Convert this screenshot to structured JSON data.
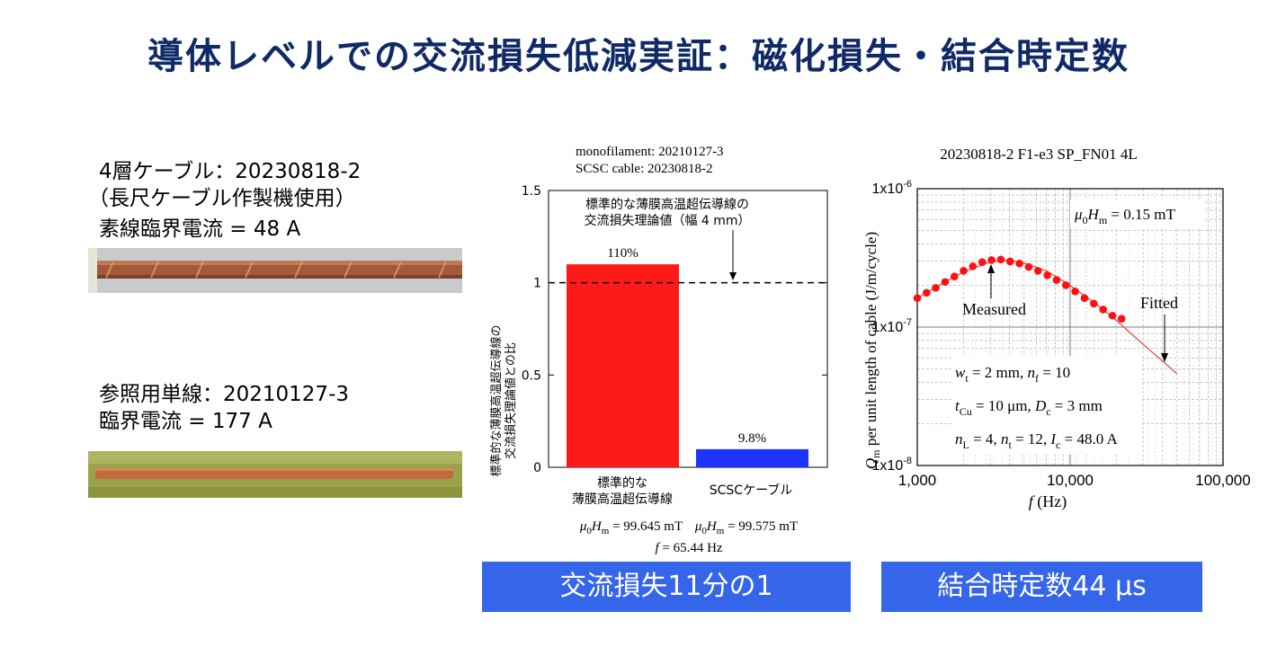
{
  "title": "導体レベルでの交流損失低減実証：磁化損失・結合時定数",
  "cable_info": {
    "line1": "4層ケーブル：20230818-2",
    "line2": "（長尺ケーブル作製機使用）",
    "line3": "素線臨界電流 = 48 A"
  },
  "mono_info": {
    "line1": "参照用単線：20210127-3",
    "line2": "臨界電流 = 177 A"
  },
  "bar_chart": {
    "header1": "monofilament: 20210127-3",
    "header2": "SCSC cable: 20230818-2",
    "ylabel": "標準的な薄膜高温超伝導線の交流損失理論値との比",
    "annotation": [
      "標準的な薄膜高温超伝導線の",
      "交流損失理論値（幅 4 mm）"
    ],
    "yticks": [
      "0",
      "0.5",
      "1",
      "1.5"
    ],
    "cat1": [
      "標準的な",
      "薄膜高温超伝導線"
    ],
    "cat2": "SCSCケーブル",
    "label1": "110%",
    "label2": "9.8%",
    "cond1": "μ0Hm = 99.645 mT",
    "cond2": "μ0Hm = 99.575 mT",
    "freq": "f = 65.44 Hz"
  },
  "loss_plot": {
    "title": "20230818-2 F1-e3 SP_FN01 4L",
    "ylabel": "per unit length of cable (J/m/cycle)",
    "ylabel_sym": "Qm",
    "xlabel": "f (Hz)",
    "xticks": [
      "1,000",
      "10,000",
      "100,000"
    ],
    "yticks": [
      "1x10-8",
      "1x10-7",
      "1x10-6"
    ],
    "field": "μ0Hm = 0.15 mT",
    "measured_label": "Measured",
    "fitted_label": "Fitted",
    "params": [
      "wt = 2 mm, nf = 10",
      "tCu = 10 μm, Dc = 3 mm",
      "nL = 4, nt = 12, Ic = 48.0 A"
    ]
  },
  "banner_left": "交流損失11分の1",
  "banner_right": "結合時定数44 μs",
  "chart_data": [
    {
      "type": "bar",
      "title": "",
      "ylabel": "標準的な薄膜高温超伝導線の交流損失理論値との比",
      "categories": [
        "標準的な薄膜高温超伝導線",
        "SCSCケーブル"
      ],
      "values": [
        1.1,
        0.098
      ],
      "colors": [
        "#ff1a1a",
        "#1f34ff"
      ],
      "ylim": [
        0,
        1.5
      ],
      "reference_line": 1,
      "data_labels": [
        "110%",
        "9.8%"
      ]
    },
    {
      "type": "scatter",
      "title": "20230818-2 F1-e3 SP_FN01 4L",
      "xlabel": "f (Hz)",
      "ylabel": "Qm per unit length of cable (J/m/cycle)",
      "xscale": "log",
      "yscale": "log",
      "xlim": [
        1000,
        100000
      ],
      "ylim": [
        1e-08,
        1e-06
      ],
      "grid": true,
      "series": [
        {
          "name": "Measured",
          "x": [
            1000,
            1150,
            1320,
            1520,
            1750,
            2010,
            2310,
            2660,
            3060,
            3520,
            4050,
            4660,
            5360,
            6160,
            7090,
            8150,
            9380,
            10790,
            12410,
            14280,
            16430,
            18900,
            21700
          ],
          "y": [
            1.62e-07,
            1.77e-07,
            1.92e-07,
            2.12e-07,
            2.32e-07,
            2.55e-07,
            2.75e-07,
            2.95e-07,
            3.05e-07,
            3.08e-07,
            2.98e-07,
            2.88e-07,
            2.72e-07,
            2.55e-07,
            2.37e-07,
            2.19e-07,
            2.01e-07,
            1.81e-07,
            1.62e-07,
            1.48e-07,
            1.34e-07,
            1.21e-07,
            1.15e-07
          ]
        },
        {
          "name": "Fitted",
          "x": [
            1000,
            1500,
            2000,
            3000,
            4000,
            5000,
            7000,
            10000,
            15000,
            20000,
            30000,
            40000,
            50000
          ],
          "y": [
            1.62e-07,
            2.1e-07,
            2.5e-07,
            2.95e-07,
            3.05e-07,
            2.9e-07,
            2.55e-07,
            2e-07,
            1.45e-07,
            1.12e-07,
            7.5e-08,
            5.7e-08,
            4.6e-08
          ]
        }
      ]
    }
  ]
}
